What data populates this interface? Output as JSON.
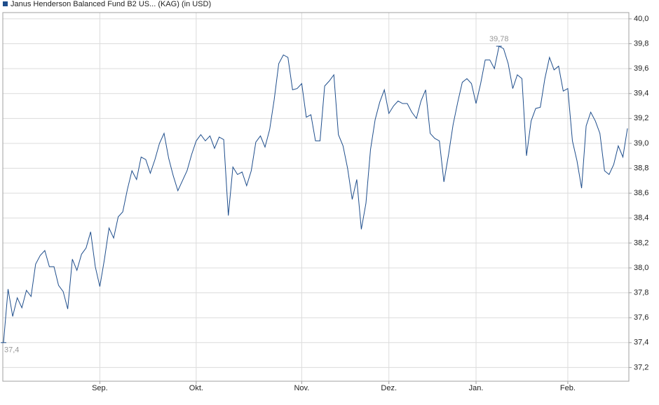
{
  "chart_data": {
    "type": "line",
    "series": [
      {
        "name": "Janus Henderson Balanced Fund B2 US... (KAG) (in USD)",
        "color": "#1f4e8c",
        "values": [
          37.4,
          37.83,
          37.61,
          37.76,
          37.68,
          37.82,
          37.77,
          38.03,
          38.1,
          38.14,
          38.01,
          38.01,
          37.86,
          37.81,
          37.67,
          38.07,
          37.98,
          38.11,
          38.16,
          38.29,
          38.01,
          37.85,
          38.07,
          38.32,
          38.24,
          38.41,
          38.45,
          38.63,
          38.78,
          38.71,
          38.89,
          38.87,
          38.76,
          38.87,
          39.0,
          39.08,
          38.88,
          38.74,
          38.62,
          38.7,
          38.78,
          38.91,
          39.02,
          39.07,
          39.02,
          39.06,
          38.96,
          39.05,
          39.03,
          38.42,
          38.81,
          38.75,
          38.77,
          38.66,
          38.78,
          39.01,
          39.06,
          38.97,
          39.11,
          39.35,
          39.64,
          39.71,
          39.69,
          39.43,
          39.44,
          39.48,
          39.21,
          39.23,
          39.02,
          39.02,
          39.46,
          39.5,
          39.55,
          39.07,
          38.98,
          38.8,
          38.55,
          38.71,
          38.31,
          38.52,
          38.95,
          39.19,
          39.33,
          39.43,
          39.24,
          39.3,
          39.34,
          39.32,
          39.32,
          39.25,
          39.2,
          39.34,
          39.43,
          39.08,
          39.04,
          39.02,
          38.69,
          38.91,
          39.15,
          39.33,
          39.49,
          39.52,
          39.48,
          39.32,
          39.48,
          39.67,
          39.67,
          39.6,
          39.78,
          39.76,
          39.64,
          39.44,
          39.55,
          39.52,
          38.9,
          39.18,
          39.28,
          39.29,
          39.52,
          39.69,
          39.59,
          39.62,
          39.42,
          39.44,
          39.02,
          38.86,
          38.64,
          39.14,
          39.25,
          39.18,
          39.08,
          38.78,
          38.75,
          38.83,
          38.98,
          38.89,
          39.12
        ]
      }
    ],
    "categories": [
      null,
      null,
      null,
      null,
      null,
      null,
      null,
      null,
      null,
      null,
      null,
      null,
      null,
      null,
      null,
      null,
      null,
      null,
      null,
      null,
      null,
      "Sep.",
      null,
      null,
      null,
      null,
      null,
      null,
      null,
      null,
      null,
      null,
      null,
      null,
      null,
      null,
      null,
      null,
      null,
      null,
      null,
      null,
      "Okt.",
      null,
      null,
      null,
      null,
      null,
      null,
      null,
      null,
      null,
      null,
      null,
      null,
      null,
      null,
      null,
      null,
      null,
      null,
      null,
      null,
      null,
      null,
      "Nov.",
      null,
      null,
      null,
      null,
      null,
      null,
      null,
      null,
      null,
      null,
      null,
      null,
      null,
      null,
      null,
      null,
      null,
      null,
      "Dez.",
      null,
      null,
      null,
      null,
      null,
      null,
      null,
      null,
      null,
      null,
      null,
      null,
      null,
      null,
      null,
      null,
      null,
      null,
      "Jan.",
      null,
      null,
      null,
      null,
      null,
      null,
      null,
      null,
      null,
      null,
      null,
      null,
      null,
      null,
      null,
      null,
      null,
      null,
      null,
      "Feb.",
      null,
      null,
      null,
      null,
      null,
      null,
      null,
      null,
      null,
      null,
      null,
      null,
      null
    ],
    "ylim": [
      37.09,
      40.05
    ],
    "yticks": [
      {
        "value": 37.2,
        "label": "37,2"
      },
      {
        "value": 37.4,
        "label": "37,4"
      },
      {
        "value": 37.6,
        "label": "37,6"
      },
      {
        "value": 37.8,
        "label": "37,8"
      },
      {
        "value": 38.0,
        "label": "38,0"
      },
      {
        "value": 38.2,
        "label": "38,2"
      },
      {
        "value": 38.4,
        "label": "38,4"
      },
      {
        "value": 38.6,
        "label": "38,6"
      },
      {
        "value": 38.8,
        "label": "38,8"
      },
      {
        "value": 39.0,
        "label": "39,0"
      },
      {
        "value": 39.2,
        "label": "39,2"
      },
      {
        "value": 39.4,
        "label": "39,4"
      },
      {
        "value": 39.6,
        "label": "39,6"
      },
      {
        "value": 39.8,
        "label": "39,8"
      },
      {
        "value": 40.0,
        "label": "40,0"
      }
    ],
    "annotations": [
      {
        "label": "37,4",
        "value": 37.4
      },
      {
        "label": "39,78",
        "value": 39.78
      }
    ],
    "grid": true,
    "legend": "top-left"
  }
}
